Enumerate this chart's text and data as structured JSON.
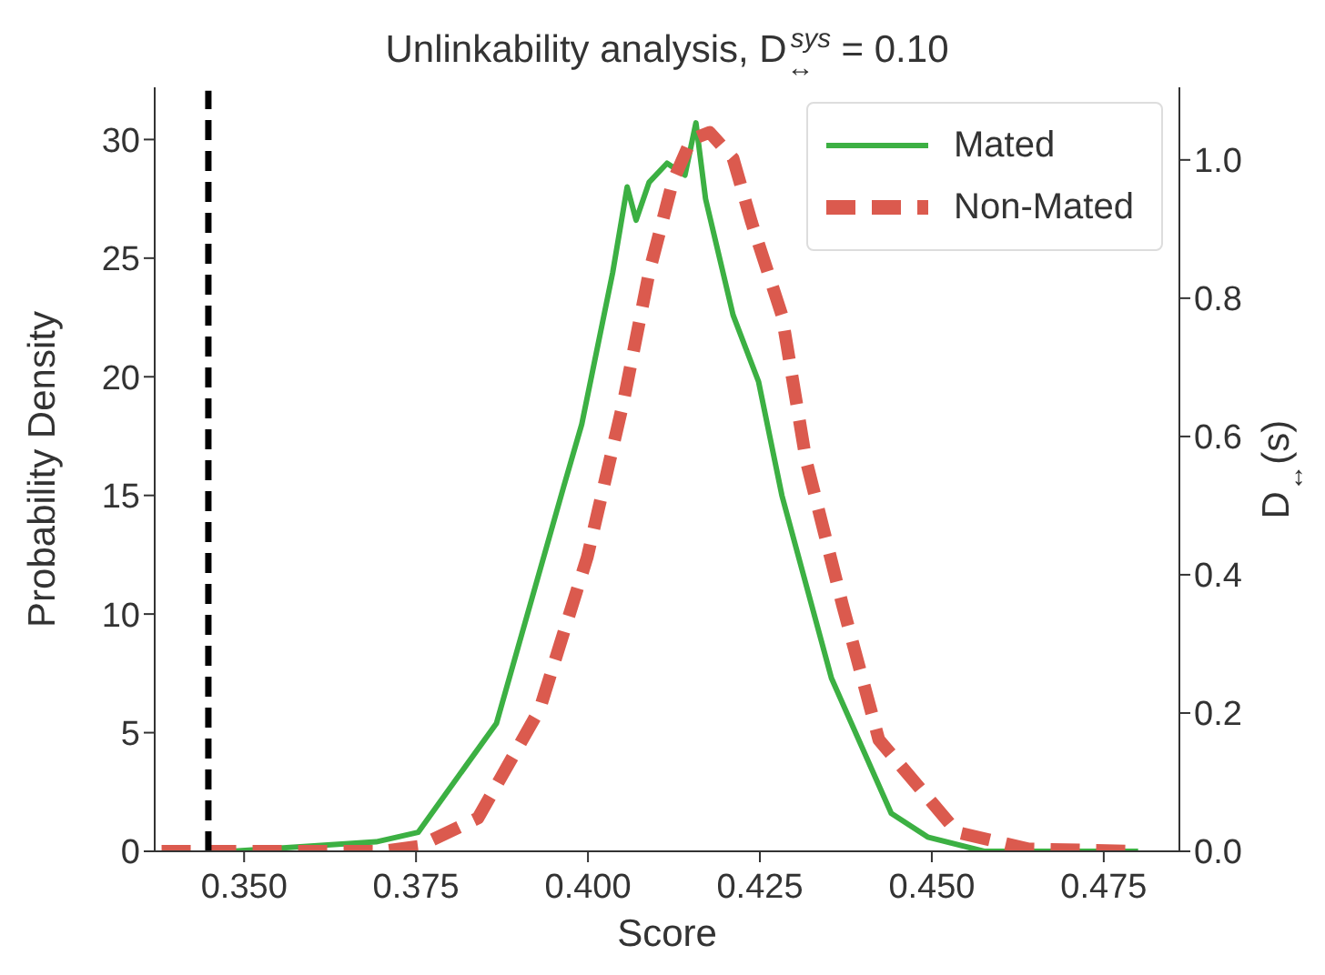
{
  "chart_data": {
    "type": "line",
    "title": "Unlinkability analysis, D$_{↔}$$^{sys}$ = 0.10",
    "xlabel": "Score",
    "ylabel": "Probability Density",
    "y2label": "D$_{↔}$(s)",
    "xlim": [
      0.337,
      0.486
    ],
    "xticks": [
      {
        "value": 0.35,
        "label": "0.350"
      },
      {
        "value": 0.375,
        "label": "0.375"
      },
      {
        "value": 0.4,
        "label": "0.400"
      },
      {
        "value": 0.425,
        "label": "0.425"
      },
      {
        "value": 0.45,
        "label": "0.450"
      },
      {
        "value": 0.475,
        "label": "0.475"
      }
    ],
    "ylim": [
      0,
      32.2
    ],
    "yticks": [
      0,
      5,
      10,
      15,
      20,
      25,
      30
    ],
    "y2lim": [
      0,
      1.105
    ],
    "y2ticks": [
      {
        "value": 0,
        "label": "0.0"
      },
      {
        "value": 0.2,
        "label": "0.2"
      },
      {
        "value": 0.4,
        "label": "0.4"
      },
      {
        "value": 0.6,
        "label": "0.6"
      },
      {
        "value": 0.8,
        "label": "0.8"
      },
      {
        "value": 1,
        "label": "1.0"
      }
    ],
    "grid": false,
    "legend": "top right",
    "marker": "none",
    "series": [
      {
        "name": "Mated",
        "color": "#3cb043",
        "line_style": "solid",
        "x": [
          0.348,
          0.3692,
          0.3753,
          0.3867,
          0.3965,
          0.3991,
          0.4036,
          0.4057,
          0.407,
          0.4089,
          0.4115,
          0.4141,
          0.4157,
          0.4171,
          0.4211,
          0.4248,
          0.4282,
          0.4354,
          0.4441,
          0.4494,
          0.4576,
          0.48
        ],
        "values": [
          0,
          0.4,
          0.8,
          5.4,
          15.4,
          18,
          24.4,
          28,
          26.6,
          28.2,
          29,
          28.5,
          30.7,
          27.5,
          22.6,
          19.8,
          15,
          7.3,
          1.6,
          0.6,
          0,
          0
        ]
      },
      {
        "name": "Non-Mated",
        "color": "#db5a4e",
        "line_style": "dashed",
        "x": [
          0.338,
          0.37,
          0.3753,
          0.384,
          0.393,
          0.3999,
          0.4052,
          0.4089,
          0.4123,
          0.415,
          0.4177,
          0.4211,
          0.4238,
          0.4282,
          0.4317,
          0.437,
          0.4423,
          0.4537,
          0.464,
          0.48
        ],
        "values": [
          0,
          0,
          0.2,
          1.4,
          6,
          12.4,
          19,
          24.4,
          28.2,
          30,
          30.3,
          29.2,
          26.5,
          22.6,
          16.5,
          10.4,
          4.7,
          0.8,
          0.1,
          0
        ]
      },
      {
        "color": "#000000",
        "line_style": "dashed",
        "axis": "y2",
        "x": [
          0.3448,
          0.3448
        ],
        "values": [
          0,
          1.1
        ]
      }
    ]
  }
}
